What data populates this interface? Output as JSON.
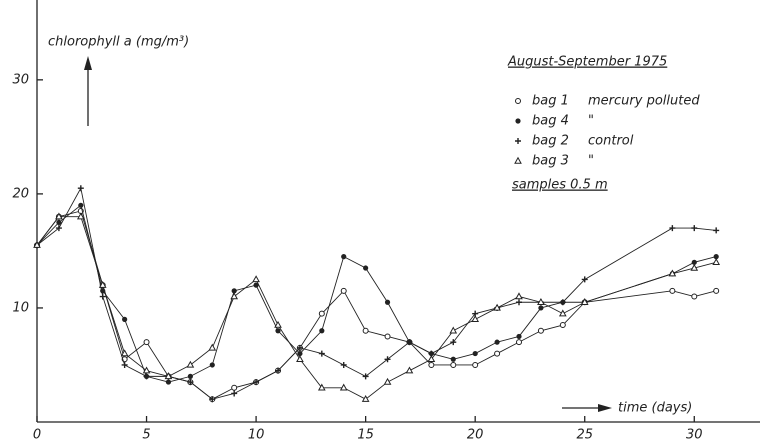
{
  "chart_data": {
    "type": "line",
    "y_label": "chlorophyll a (mg/m³)",
    "x_label": "time (days)",
    "legend_title": "August-September 1975",
    "legend_note": "samples  0.5 m",
    "x": [
      0,
      1,
      2,
      3,
      4,
      5,
      6,
      7,
      8,
      9,
      10,
      11,
      12,
      13,
      14,
      15,
      16,
      17,
      18,
      19,
      20,
      21,
      22,
      23,
      24,
      25,
      29,
      30,
      31
    ],
    "series": [
      {
        "name": "bag 1",
        "description": "mercury polluted",
        "marker": "open-circle",
        "color": "#222222",
        "values": [
          15.5,
          18,
          18.5,
          12,
          5.5,
          7,
          4,
          3.5,
          2,
          3,
          3.5,
          4.5,
          6.5,
          9.5,
          11.5,
          8,
          7.5,
          7,
          5,
          5,
          5,
          6,
          7,
          8,
          8.5,
          10.5,
          11.5,
          11,
          11.5
        ]
      },
      {
        "name": "bag 4",
        "description": "\"",
        "marker": "filled-circle",
        "color": "#222222",
        "values": [
          15.5,
          17.5,
          19,
          11.5,
          9,
          4,
          3.5,
          4,
          5,
          11.5,
          12,
          8,
          6,
          8,
          14.5,
          13.5,
          10.5,
          7,
          6,
          5.5,
          6,
          7,
          7.5,
          10,
          10.5,
          10.5,
          13,
          14,
          14.5
        ]
      },
      {
        "name": "bag 2",
        "description": "control",
        "marker": "plus",
        "color": "#222222",
        "values": [
          15.5,
          17,
          20.5,
          11,
          5,
          4,
          4,
          3.5,
          2,
          2.5,
          3.5,
          4.5,
          6.5,
          6,
          5,
          4,
          5.5,
          7,
          6,
          7,
          9.5,
          10,
          10.5,
          10.5,
          10.5,
          12.5,
          17,
          17,
          16.8
        ]
      },
      {
        "name": "bag 3",
        "description": "\"",
        "marker": "triangle",
        "color": "#222222",
        "values": [
          15.5,
          18,
          18,
          12,
          6,
          4.5,
          4,
          5,
          6.5,
          11,
          12.5,
          8.5,
          5.5,
          3,
          3,
          2,
          3.5,
          4.5,
          5.5,
          8,
          9,
          10,
          11,
          10.5,
          9.5,
          10.5,
          13,
          13.5,
          14
        ]
      }
    ],
    "xlim": [
      0,
      33
    ],
    "ylim": [
      0,
      37
    ],
    "xticks": [
      0,
      5,
      10,
      15,
      20,
      25,
      30
    ],
    "yticks": [
      10,
      20,
      30
    ]
  }
}
